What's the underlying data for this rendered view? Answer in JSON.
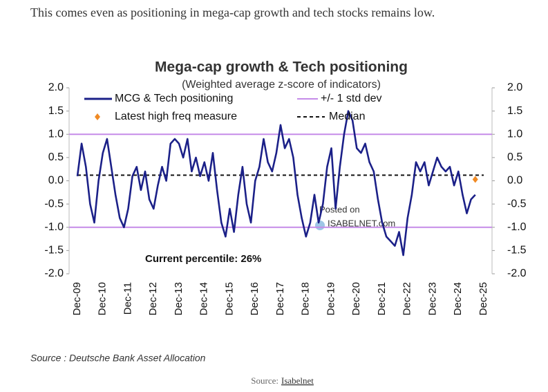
{
  "intro": "This comes even as positioning in mega-cap growth and tech stocks remains low.",
  "chart_data": {
    "type": "line",
    "title": "Mega-cap growth & Tech positioning",
    "subtitle": "(Weighted average z-score of indicators)",
    "categories": [
      "Dec-09",
      null,
      null,
      null,
      null,
      null,
      "Dec-10",
      null,
      null,
      null,
      null,
      null,
      "Dec-11",
      null,
      null,
      null,
      null,
      null,
      "Dec-12",
      null,
      null,
      null,
      null,
      null,
      "Dec-13",
      null,
      null,
      null,
      null,
      null,
      "Dec-14",
      null,
      null,
      null,
      null,
      null,
      "Dec-15",
      null,
      null,
      null,
      null,
      null,
      "Dec-16",
      null,
      null,
      null,
      null,
      null,
      "Dec-17",
      null,
      null,
      null,
      null,
      null,
      "Dec-18",
      null,
      null,
      null,
      null,
      null,
      "Dec-19",
      null,
      null,
      null,
      null,
      null,
      "Dec-20",
      null,
      null,
      null,
      null,
      null,
      "Dec-21",
      null,
      null,
      null,
      null,
      null,
      "Dec-22",
      null,
      null,
      null,
      null,
      null,
      "Dec-23",
      null,
      null,
      null,
      null,
      null,
      "Dec-24",
      null,
      null,
      null,
      null,
      null,
      "Dec-25"
    ],
    "series": [
      {
        "name": "MCG & Tech positioning",
        "color": "#1b2088",
        "values": [
          0.1,
          0.8,
          0.3,
          -0.5,
          -0.9,
          0.0,
          0.6,
          0.9,
          0.3,
          -0.3,
          -0.8,
          -1.0,
          -0.6,
          0.1,
          0.3,
          -0.2,
          0.2,
          -0.4,
          -0.6,
          -0.1,
          0.3,
          0.0,
          0.8,
          0.9,
          0.8,
          0.5,
          0.9,
          0.2,
          0.5,
          0.1,
          0.4,
          0.0,
          0.6,
          -0.2,
          -0.9,
          -1.2,
          -0.6,
          -1.1,
          -0.3,
          0.3,
          -0.5,
          -0.9,
          0.0,
          0.3,
          0.9,
          0.4,
          0.2,
          0.6,
          1.2,
          0.7,
          0.9,
          0.5,
          -0.3,
          -0.8,
          -1.2,
          -0.9,
          -0.3,
          -0.9,
          -0.5,
          0.3,
          0.7,
          -0.6,
          0.3,
          1.0,
          1.5,
          1.3,
          0.7,
          0.6,
          0.8,
          0.4,
          0.2,
          -0.4,
          -0.9,
          -1.2,
          -1.3,
          -1.4,
          -1.1,
          -1.6,
          -0.8,
          -0.3,
          0.4,
          0.2,
          0.4,
          -0.1,
          0.2,
          0.5,
          0.3,
          0.2,
          0.3,
          -0.1,
          0.2,
          -0.3,
          -0.7,
          -0.4,
          -0.3,
          null,
          null
        ]
      },
      {
        "name": "Latest high freq measure",
        "color": "#f08a24",
        "marker": "diamond",
        "values": [
          null,
          null,
          null,
          null,
          null,
          null,
          null,
          null,
          null,
          null,
          null,
          null,
          null,
          null,
          null,
          null,
          null,
          null,
          null,
          null,
          null,
          null,
          null,
          null,
          null,
          null,
          null,
          null,
          null,
          null,
          null,
          null,
          null,
          null,
          null,
          null,
          null,
          null,
          null,
          null,
          null,
          null,
          null,
          null,
          null,
          null,
          null,
          null,
          null,
          null,
          null,
          null,
          null,
          null,
          null,
          null,
          null,
          null,
          null,
          null,
          null,
          null,
          null,
          null,
          null,
          null,
          null,
          null,
          null,
          null,
          null,
          null,
          null,
          null,
          null,
          null,
          null,
          null,
          null,
          null,
          null,
          null,
          null,
          null,
          null,
          null,
          null,
          null,
          null,
          null,
          null,
          null,
          null,
          null,
          0.03,
          null,
          null
        ]
      }
    ],
    "reference_lines": [
      {
        "name": "+/- 1 std dev",
        "color": "#c58be8",
        "values": [
          1,
          -1
        ]
      },
      {
        "name": "Median",
        "color": "#111111",
        "dashed": true,
        "values": [
          0.12
        ]
      }
    ],
    "ylim": [
      -2,
      2
    ],
    "yticks": [
      {
        "value": -2,
        "label": "-2.0"
      },
      {
        "value": -1.5,
        "label": "-1.5"
      },
      {
        "value": -1,
        "label": "-1.0"
      },
      {
        "value": -0.5,
        "label": "-0.5"
      },
      {
        "value": 0,
        "label": "0.0"
      },
      {
        "value": 0.5,
        "label": "0.5"
      },
      {
        "value": 1,
        "label": "1.0"
      },
      {
        "value": 1.5,
        "label": "1.5"
      },
      {
        "value": 2,
        "label": "2.0"
      }
    ],
    "y2lim": [
      -2,
      2
    ],
    "y2ticks": [
      {
        "value": -2,
        "label": "-2.0"
      },
      {
        "value": -1.5,
        "label": "-1.5"
      },
      {
        "value": -1,
        "label": "-1.0"
      },
      {
        "value": -0.5,
        "label": "-0.5"
      },
      {
        "value": 0,
        "label": "0.0"
      },
      {
        "value": 0.5,
        "label": "0.5"
      },
      {
        "value": 1,
        "label": "1.0"
      },
      {
        "value": 1.5,
        "label": "1.5"
      },
      {
        "value": 2,
        "label": "2.0"
      }
    ],
    "annotation": "Current percentile: 26%",
    "watermark": [
      "Posted on",
      "ISABELNET.com"
    ],
    "source": "Source : Deutsche Bank Asset Allocation"
  },
  "caption": {
    "prefix": "Source:",
    "link": "Isabelnet"
  }
}
